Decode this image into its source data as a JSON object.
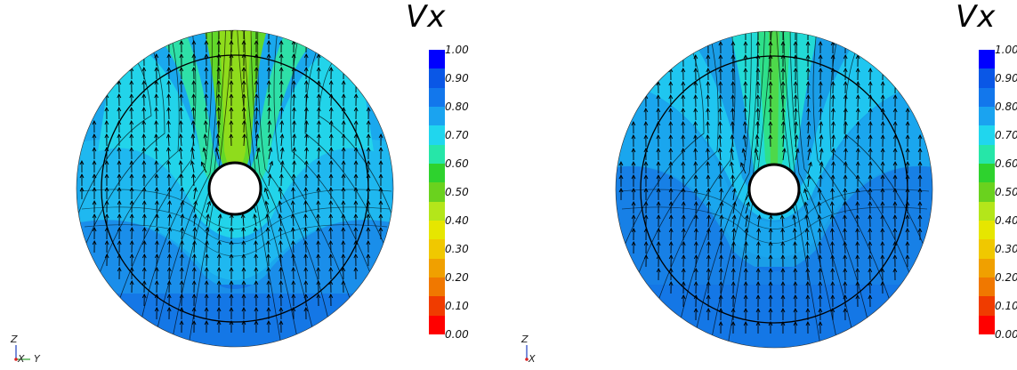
{
  "panels": [
    {
      "id": "left",
      "colorbar": {
        "title": "Vx",
        "ticks": [
          "1.00",
          "0.90",
          "0.80",
          "0.70",
          "0.60",
          "0.50",
          "0.40",
          "0.30",
          "0.20",
          "0.10",
          "0.00"
        ],
        "colors": [
          "#0000ff",
          "#0a57e6",
          "#1277ec",
          "#1aa3f0",
          "#20d6ee",
          "#26e6a8",
          "#2ed22e",
          "#6ad21e",
          "#b4e61a",
          "#e6e600",
          "#f0c800",
          "#f0a000",
          "#f07800",
          "#f03c00",
          "#ff0000"
        ]
      },
      "axes": {
        "z": "Z",
        "x": "X",
        "y": "Y"
      },
      "field": {
        "min_vx_near_cylinder": 0.5,
        "far_field_vx": 0.9
      }
    },
    {
      "id": "right",
      "colorbar": {
        "title": "Vx",
        "ticks": [
          "1.00",
          "0.90",
          "0.80",
          "0.70",
          "0.60",
          "0.50",
          "0.40",
          "0.30",
          "0.20",
          "0.10",
          "0.00"
        ],
        "colors": [
          "#0000ff",
          "#0a57e6",
          "#1277ec",
          "#1aa3f0",
          "#20d6ee",
          "#26e6a8",
          "#2ed22e",
          "#6ad21e",
          "#b4e61a",
          "#e6e600",
          "#f0c800",
          "#f0a000",
          "#f07800",
          "#f03c00",
          "#ff0000"
        ]
      },
      "axes": {
        "z": "Z",
        "x": "X"
      },
      "field": {
        "min_vx_near_cylinder": 0.55,
        "far_field_vx": 0.9
      }
    }
  ]
}
